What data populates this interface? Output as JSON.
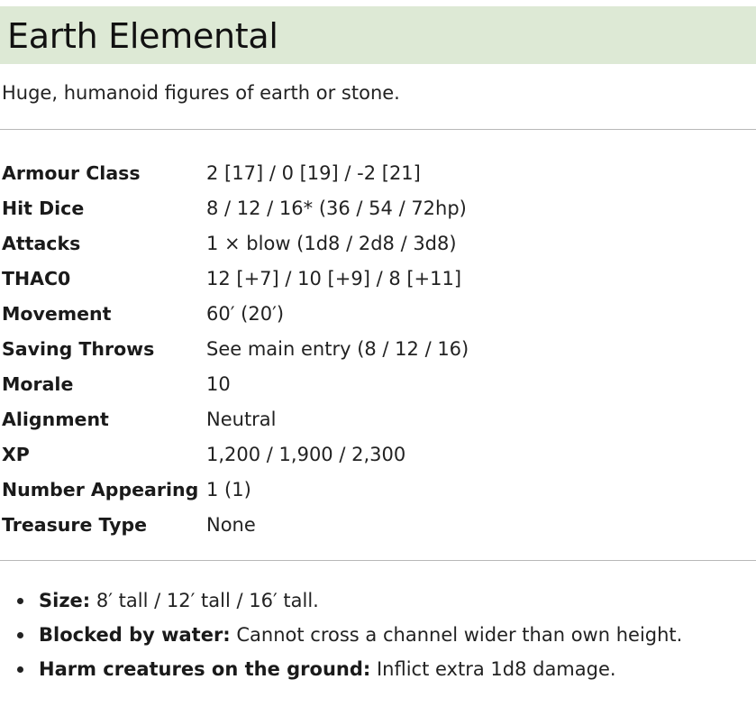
{
  "header": {
    "title": "Earth Elemental"
  },
  "intro": "Huge, humanoid figures of earth or stone.",
  "stats": [
    {
      "label": "Armour Class",
      "value": "2 [17] / 0 [19] / -2 [21]"
    },
    {
      "label": "Hit Dice",
      "value": "8 / 12 / 16* (36 / 54 / 72hp)"
    },
    {
      "label": "Attacks",
      "value": "1 × blow (1d8 / 2d8 / 3d8)"
    },
    {
      "label": "THAC0",
      "value": "12 [+7] / 10 [+9] / 8 [+11]"
    },
    {
      "label": "Movement",
      "value": "60′ (20′)"
    },
    {
      "label": "Saving Throws",
      "value": "See main entry (8 / 12 / 16)"
    },
    {
      "label": "Morale",
      "value": "10"
    },
    {
      "label": "Alignment",
      "value": "Neutral"
    },
    {
      "label": "XP",
      "value": "1,200 / 1,900 / 2,300"
    },
    {
      "label": "Number Appearing",
      "value": "1 (1)"
    },
    {
      "label": "Treasure Type",
      "value": "None"
    }
  ],
  "notes": [
    {
      "term": "Size:",
      "text": " 8′ tall / 12′ tall / 16′ tall."
    },
    {
      "term": "Blocked by water:",
      "text": " Cannot cross a channel wider than own height."
    },
    {
      "term": "Harm creatures on the ground:",
      "text": " Inflict extra 1d8 damage."
    }
  ]
}
